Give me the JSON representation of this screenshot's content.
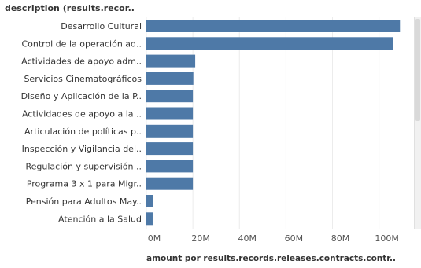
{
  "chart_data": {
    "type": "bar",
    "orientation": "horizontal",
    "title": "",
    "row_header": "description (results.recor..",
    "xlabel": "amount por results.records.releases.contracts.contr..",
    "categories": [
      "Desarrollo Cultural",
      "Control de la operación ad..",
      "Actividades de apoyo adm..",
      "Servicios Cinematográficos",
      "Diseño y Aplicación de la P..",
      "Actividades de apoyo a la ..",
      "Articulación de políticas p..",
      "Inspección y Vigilancia del..",
      "Regulación y supervisión ..",
      "Programa 3 x 1 para Migr..",
      "Pensión para Adultos May..",
      "Atención a la Salud"
    ],
    "values": [
      109000000,
      106000000,
      21000000,
      20200000,
      20000000,
      20000000,
      20000000,
      20000000,
      20000000,
      20000000,
      3000000,
      2700000
    ],
    "xlim": [
      0,
      115000000
    ],
    "xticks": [
      0,
      20000000,
      40000000,
      60000000,
      80000000,
      100000000
    ],
    "xtick_labels": [
      "0M",
      "20M",
      "40M",
      "60M",
      "80M",
      "100M"
    ],
    "grid": true,
    "bar_color": "#4e79a7"
  }
}
